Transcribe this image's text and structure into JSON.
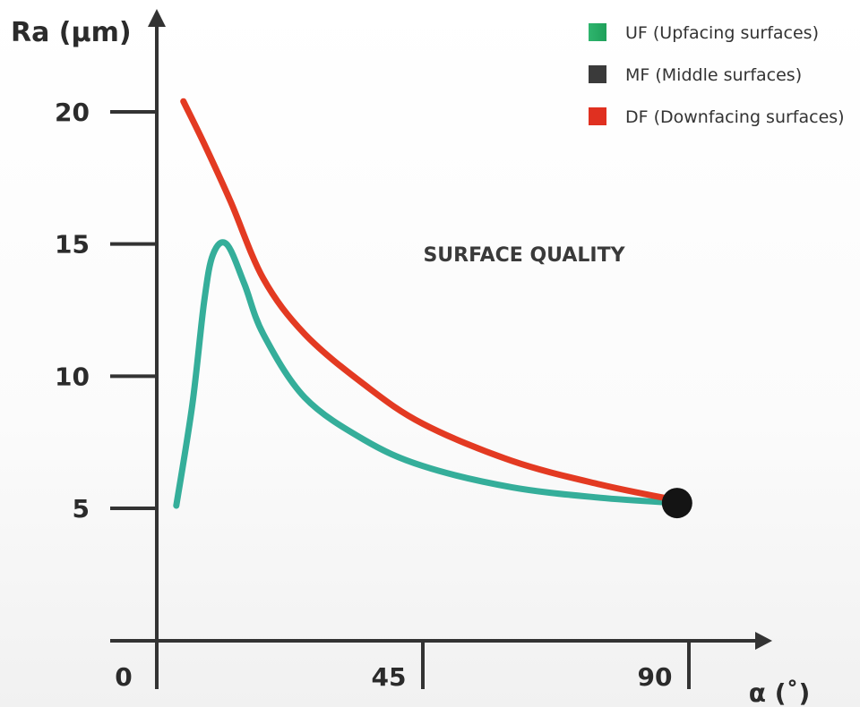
{
  "chart_data": {
    "type": "line",
    "title": "",
    "annotation": "SURFACE QUALITY",
    "xlabel": "α (˚)",
    "ylabel": "Ra (µm)",
    "xlim": [
      0,
      90
    ],
    "ylim": [
      0,
      22
    ],
    "x_ticks": [
      0,
      45,
      90
    ],
    "y_ticks": [
      5,
      10,
      15,
      20
    ],
    "x_tick_labels": [
      "0",
      "45",
      "90"
    ],
    "y_tick_labels": [
      "5",
      "10",
      "15",
      "20"
    ],
    "grid": false,
    "legend_position": "top-right",
    "legend": [
      {
        "label": "UF (Upfacing surfaces)",
        "color": "#1fa05a",
        "color_end": "#2fb56e",
        "gradient": true
      },
      {
        "label": "MF (Middle surfaces)",
        "color": "#3a3a3a"
      },
      {
        "label": "DF (Downfacing surfaces)",
        "color": "#e03020"
      }
    ],
    "series": [
      {
        "key": "upfacing",
        "color": "#35ae9a",
        "points": [
          [
            3.3,
            5.1
          ],
          [
            6,
            8.9
          ],
          [
            8,
            12.8
          ],
          [
            9.5,
            14.6
          ],
          [
            11.8,
            15.0
          ],
          [
            14.8,
            13.5
          ],
          [
            18,
            11.6
          ],
          [
            25,
            9.2
          ],
          [
            35,
            7.6
          ],
          [
            45,
            6.6
          ],
          [
            60,
            5.8
          ],
          [
            75,
            5.4
          ],
          [
            88,
            5.2
          ]
        ]
      },
      {
        "key": "downfacing",
        "color": "#e33a22",
        "points": [
          [
            4.5,
            20.4
          ],
          [
            8,
            18.8
          ],
          [
            12.5,
            16.6
          ],
          [
            18,
            13.7
          ],
          [
            25,
            11.6
          ],
          [
            35,
            9.7
          ],
          [
            45,
            8.2
          ],
          [
            60,
            6.8
          ],
          [
            75,
            5.9
          ],
          [
            88,
            5.3
          ]
        ]
      }
    ],
    "marker_points": [
      {
        "key": "middle",
        "x": 88,
        "y": 5.2,
        "color": "#141414"
      }
    ]
  }
}
